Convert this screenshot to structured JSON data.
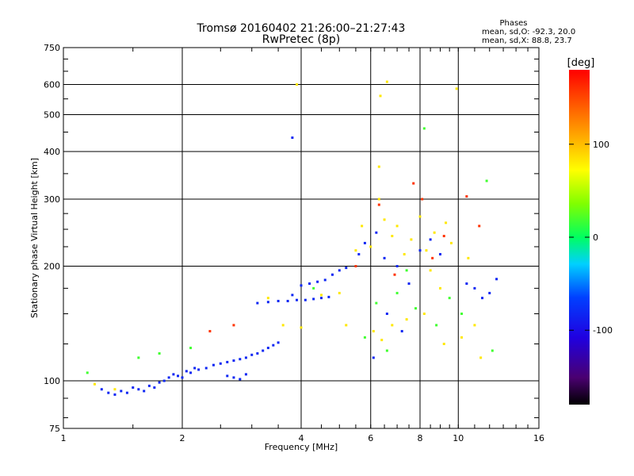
{
  "chart_data": {
    "type": "scatter",
    "title": "Tromsø 20160402 21:26:00–21:27:43",
    "subtitle": "RwPretec (8p)",
    "xlabel": "Frequency [MHz]",
    "ylabel": "Stationary phase Virtual Height [km]",
    "xscale": "log2",
    "yscale": "log",
    "xlim": [
      1,
      16
    ],
    "ylim": [
      75,
      750
    ],
    "grid": true,
    "x_ticks": [
      1,
      2,
      4,
      6,
      8,
      10,
      16
    ],
    "x_tick_labels": [
      "1",
      "2",
      "4",
      "6",
      "8",
      "10",
      "16"
    ],
    "y_ticks": [
      75,
      100,
      200,
      300,
      400,
      500,
      600,
      750
    ],
    "y_tick_labels": [
      "75",
      "100",
      "200",
      "300",
      "400",
      "500",
      "600",
      "750"
    ],
    "stats": {
      "heading": "Phases",
      "line_o": "mean, sd,O: -92.3, 20.0",
      "line_x": "mean, sd,X:  88.8, 23.7"
    },
    "colorbar": {
      "label": "[deg]",
      "range": [
        -180,
        180
      ],
      "ticks": [
        100,
        0,
        -100
      ],
      "tick_labels": [
        "100",
        "0",
        "-100"
      ]
    },
    "series": [
      {
        "name": "O-mode trace (blue)",
        "phase_deg": -92,
        "points": [
          [
            1.25,
            95
          ],
          [
            1.3,
            93
          ],
          [
            1.35,
            92
          ],
          [
            1.4,
            94
          ],
          [
            1.45,
            93
          ],
          [
            1.5,
            96
          ],
          [
            1.55,
            95
          ],
          [
            1.6,
            94
          ],
          [
            1.65,
            97
          ],
          [
            1.7,
            96
          ],
          [
            1.75,
            99
          ],
          [
            1.8,
            100
          ],
          [
            1.85,
            102
          ],
          [
            1.9,
            104
          ],
          [
            1.95,
            103
          ],
          [
            2.0,
            102
          ],
          [
            2.05,
            106
          ],
          [
            2.1,
            105
          ],
          [
            2.15,
            108
          ],
          [
            2.2,
            107
          ],
          [
            2.3,
            108
          ],
          [
            2.4,
            110
          ],
          [
            2.5,
            111
          ],
          [
            2.6,
            112
          ],
          [
            2.7,
            113
          ],
          [
            2.8,
            114
          ],
          [
            2.9,
            115
          ],
          [
            3.0,
            117
          ],
          [
            3.1,
            118
          ],
          [
            3.2,
            120
          ],
          [
            3.3,
            122
          ],
          [
            3.4,
            124
          ],
          [
            3.5,
            126
          ],
          [
            2.6,
            103
          ],
          [
            2.7,
            102
          ],
          [
            2.8,
            101
          ],
          [
            2.9,
            104
          ],
          [
            3.1,
            160
          ],
          [
            3.3,
            161
          ],
          [
            3.5,
            162
          ],
          [
            3.7,
            162
          ],
          [
            3.9,
            163
          ],
          [
            4.1,
            163
          ],
          [
            4.3,
            164
          ],
          [
            4.5,
            165
          ],
          [
            4.7,
            166
          ],
          [
            3.8,
            168
          ],
          [
            4.0,
            178
          ],
          [
            4.2,
            180
          ],
          [
            4.4,
            182
          ],
          [
            4.6,
            184
          ],
          [
            4.8,
            190
          ],
          [
            5.0,
            195
          ],
          [
            5.2,
            198
          ],
          [
            5.6,
            215
          ],
          [
            5.8,
            230
          ],
          [
            6.2,
            245
          ],
          [
            6.5,
            210
          ],
          [
            7.0,
            200
          ],
          [
            7.5,
            180
          ],
          [
            8.0,
            220
          ],
          [
            8.5,
            235
          ],
          [
            9.0,
            215
          ],
          [
            10.5,
            180
          ],
          [
            11,
            175
          ],
          [
            11.5,
            165
          ],
          [
            12,
            170
          ],
          [
            12.5,
            185
          ],
          [
            6.1,
            115
          ],
          [
            6.6,
            150
          ],
          [
            7.2,
            135
          ],
          [
            3.8,
            435
          ]
        ]
      },
      {
        "name": "X-mode trace (yellow)",
        "phase_deg": 89,
        "points": [
          [
            1.2,
            98
          ],
          [
            1.35,
            95
          ],
          [
            3.3,
            165
          ],
          [
            3.6,
            140
          ],
          [
            4.0,
            138
          ],
          [
            4.5,
            168
          ],
          [
            5.0,
            170
          ],
          [
            5.2,
            140
          ],
          [
            5.5,
            220
          ],
          [
            5.7,
            255
          ],
          [
            6.0,
            225
          ],
          [
            6.3,
            300
          ],
          [
            6.5,
            265
          ],
          [
            6.8,
            240
          ],
          [
            7.0,
            255
          ],
          [
            7.3,
            215
          ],
          [
            7.6,
            235
          ],
          [
            8.0,
            270
          ],
          [
            8.3,
            220
          ],
          [
            8.5,
            195
          ],
          [
            8.7,
            245
          ],
          [
            9.0,
            175
          ],
          [
            9.3,
            260
          ],
          [
            9.6,
            230
          ],
          [
            6.1,
            135
          ],
          [
            6.4,
            128
          ],
          [
            6.8,
            140
          ],
          [
            7.4,
            145
          ],
          [
            8.2,
            150
          ],
          [
            9.2,
            125
          ],
          [
            10.2,
            130
          ],
          [
            10.6,
            210
          ],
          [
            11,
            140
          ],
          [
            11.4,
            115
          ],
          [
            6.3,
            365
          ],
          [
            6.6,
            610
          ],
          [
            6.35,
            560
          ],
          [
            9.9,
            585
          ],
          [
            3.9,
            600
          ]
        ]
      },
      {
        "name": "Scattered echoes (green/cyan)",
        "phase_deg": 20,
        "points": [
          [
            1.15,
            105
          ],
          [
            1.55,
            115
          ],
          [
            1.75,
            118
          ],
          [
            2.1,
            122
          ],
          [
            4.3,
            175
          ],
          [
            5.8,
            130
          ],
          [
            6.2,
            160
          ],
          [
            7.0,
            170
          ],
          [
            7.8,
            155
          ],
          [
            8.2,
            460
          ],
          [
            8.8,
            140
          ],
          [
            9.5,
            165
          ],
          [
            10.2,
            150
          ],
          [
            11.8,
            335
          ],
          [
            12.2,
            120
          ],
          [
            6.6,
            120
          ],
          [
            7.4,
            195
          ]
        ]
      },
      {
        "name": "Scattered echoes (red/orange)",
        "phase_deg": 160,
        "points": [
          [
            2.35,
            135
          ],
          [
            2.7,
            140
          ],
          [
            5.5,
            200
          ],
          [
            6.3,
            290
          ],
          [
            7.7,
            330
          ],
          [
            8.1,
            300
          ],
          [
            9.2,
            240
          ],
          [
            10.5,
            305
          ],
          [
            11.3,
            255
          ],
          [
            6.9,
            190
          ],
          [
            8.6,
            210
          ]
        ]
      }
    ]
  }
}
